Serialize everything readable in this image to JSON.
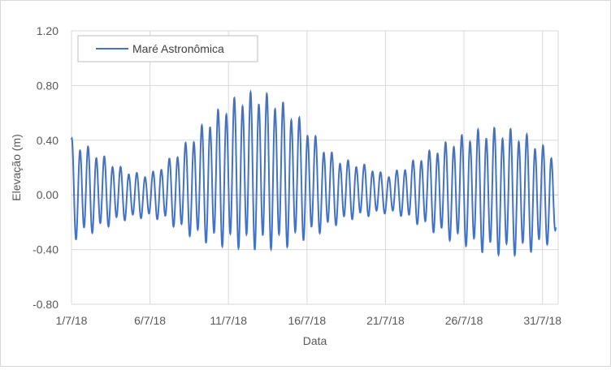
{
  "chart_data": {
    "type": "line",
    "title": "",
    "xlabel": "Data",
    "ylabel": "Elevação (m)",
    "ylim": [
      -0.8,
      1.2
    ],
    "yticks": [
      "1.20",
      "0.80",
      "0.40",
      "0.00",
      "-0.40",
      "-0.80"
    ],
    "xlim": [
      "2018-07-01",
      "2018-08-01"
    ],
    "xticks": [
      "1/7/18",
      "6/7/18",
      "11/7/18",
      "16/7/18",
      "21/7/18",
      "26/7/18",
      "31/7/18"
    ],
    "grid": true,
    "legend_position": "top-left",
    "series": [
      {
        "name": "Maré Astronômica",
        "color": "#4472c4",
        "x": [
          "2018-07-01",
          "2018-07-02",
          "2018-07-03",
          "2018-07-04",
          "2018-07-05",
          "2018-07-06",
          "2018-07-07",
          "2018-07-08",
          "2018-07-09",
          "2018-07-10",
          "2018-07-11",
          "2018-07-12",
          "2018-07-13",
          "2018-07-14",
          "2018-07-15",
          "2018-07-16",
          "2018-07-17",
          "2018-07-18",
          "2018-07-19",
          "2018-07-20",
          "2018-07-21",
          "2018-07-22",
          "2018-07-23",
          "2018-07-24",
          "2018-07-25",
          "2018-07-26",
          "2018-07-27",
          "2018-07-28",
          "2018-07-29",
          "2018-07-30",
          "2018-07-31",
          "2018-08-01"
        ],
        "high_water": [
          0.43,
          0.37,
          0.3,
          0.22,
          0.17,
          0.16,
          0.25,
          0.36,
          0.49,
          0.61,
          0.71,
          0.77,
          0.78,
          0.74,
          0.65,
          0.52,
          0.38,
          0.28,
          0.25,
          0.22,
          0.15,
          0.2,
          0.28,
          0.35,
          0.41,
          0.46,
          0.5,
          0.51,
          0.5,
          0.46,
          0.38,
          0.3
        ],
        "low_water": [
          -0.35,
          -0.3,
          -0.26,
          -0.2,
          -0.18,
          -0.17,
          -0.2,
          -0.28,
          -0.34,
          -0.38,
          -0.4,
          -0.41,
          -0.42,
          -0.41,
          -0.39,
          -0.33,
          -0.28,
          -0.22,
          -0.18,
          -0.16,
          -0.14,
          -0.16,
          -0.22,
          -0.28,
          -0.34,
          -0.38,
          -0.43,
          -0.45,
          -0.46,
          -0.44,
          -0.4,
          -0.31
        ]
      }
    ]
  }
}
